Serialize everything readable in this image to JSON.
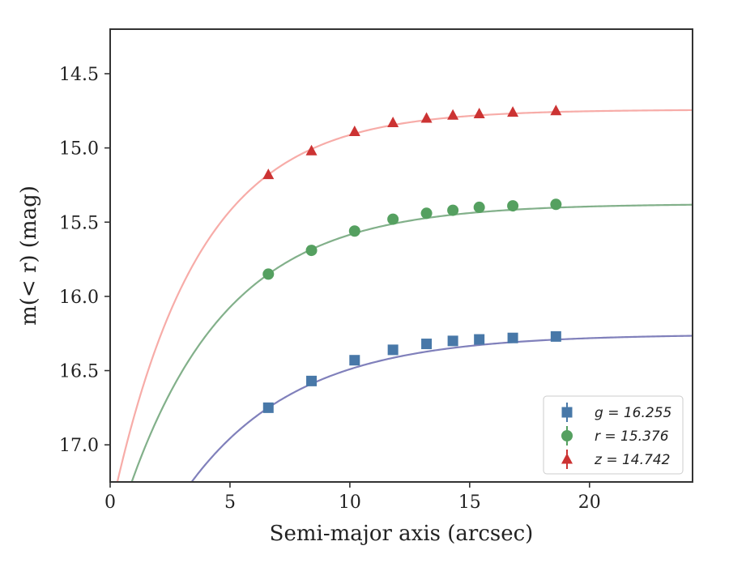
{
  "chart_data": {
    "type": "scatter",
    "title": "",
    "xlabel": "Semi-major axis (arcsec)",
    "ylabel": "m(< r) (mag)",
    "xlim": [
      0,
      24.3
    ],
    "ylim": [
      17.25,
      14.2
    ],
    "y_inverted": true,
    "xticks": [
      0,
      5,
      10,
      15,
      20
    ],
    "xtick_labels": [
      "0",
      "5",
      "10",
      "15",
      "20"
    ],
    "yticks": [
      14.5,
      15.0,
      15.5,
      16.0,
      16.5,
      17.0
    ],
    "ytick_labels": [
      "14.5",
      "15.0",
      "15.5",
      "16.0",
      "16.5",
      "17.0"
    ],
    "grid": false,
    "legend_position": "lower-right",
    "series": [
      {
        "name": "g",
        "legend_label": "g = 16.255",
        "marker": "square",
        "color": "#4878a8",
        "curve_color": "#8080bb",
        "x": [
          6.6,
          8.4,
          10.2,
          11.8,
          13.2,
          14.3,
          15.4,
          16.8,
          18.6
        ],
        "y": [
          16.75,
          16.57,
          16.43,
          16.36,
          16.32,
          16.3,
          16.29,
          16.28,
          16.27
        ],
        "fit_asymptote": 16.255,
        "fit_start": [
          3.4,
          17.25
        ]
      },
      {
        "name": "r",
        "legend_label": "r = 15.376",
        "marker": "circle",
        "color": "#55a060",
        "curve_color": "#82b08a",
        "x": [
          6.6,
          8.4,
          10.2,
          11.8,
          13.2,
          14.3,
          15.4,
          16.8,
          18.6
        ],
        "y": [
          15.85,
          15.69,
          15.56,
          15.48,
          15.44,
          15.42,
          15.4,
          15.39,
          15.38
        ],
        "fit_asymptote": 15.376,
        "fit_start": [
          0.9,
          17.25
        ]
      },
      {
        "name": "z",
        "legend_label": "z = 14.742",
        "marker": "triangle",
        "color": "#cc3333",
        "curve_color": "#f7aca8",
        "x": [
          6.6,
          8.4,
          10.2,
          11.8,
          13.2,
          14.3,
          15.4,
          16.8,
          18.6
        ],
        "y": [
          15.18,
          15.02,
          14.89,
          14.83,
          14.8,
          14.78,
          14.77,
          14.76,
          14.75
        ],
        "fit_asymptote": 14.742,
        "fit_start": [
          0.3,
          17.25
        ]
      }
    ]
  }
}
